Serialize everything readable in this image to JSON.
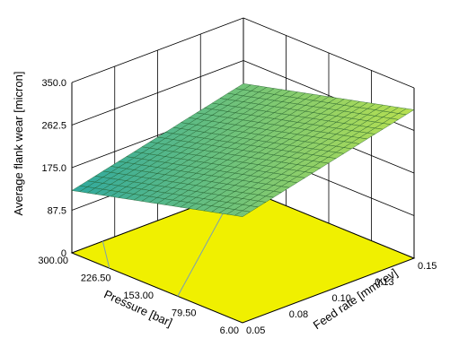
{
  "chart_data": {
    "type": "surface",
    "zlabel": "Average flank wear [micron]",
    "xlabel": "Pressure [bar]",
    "ylabel": "Feed rate [mm/rev]",
    "z_ticks": [
      "0",
      "87.5",
      "175.0",
      "262.5",
      "350.0"
    ],
    "x_ticks": [
      "300.00",
      "226.50",
      "153.00",
      "79.50",
      "6.00"
    ],
    "y_ticks": [
      "0.05",
      "0.08",
      "0.10",
      "0.13",
      "0.15"
    ],
    "zlim": [
      0,
      350
    ],
    "xlim": [
      6,
      300
    ],
    "ylim": [
      0.05,
      0.15
    ],
    "surface": {
      "corners": [
        {
          "pressure": 300,
          "feed_rate": 0.05,
          "wear": 128
        },
        {
          "pressure": 300,
          "feed_rate": 0.15,
          "wear": 215
        },
        {
          "pressure": 6,
          "feed_rate": 0.05,
          "wear": 218
        },
        {
          "pressure": 6,
          "feed_rate": 0.15,
          "wear": 305
        }
      ]
    },
    "colors": {
      "floor": "#f0f000",
      "surface_low": "#2fa8a0",
      "surface_high": "#b8e050"
    },
    "grid": true
  }
}
